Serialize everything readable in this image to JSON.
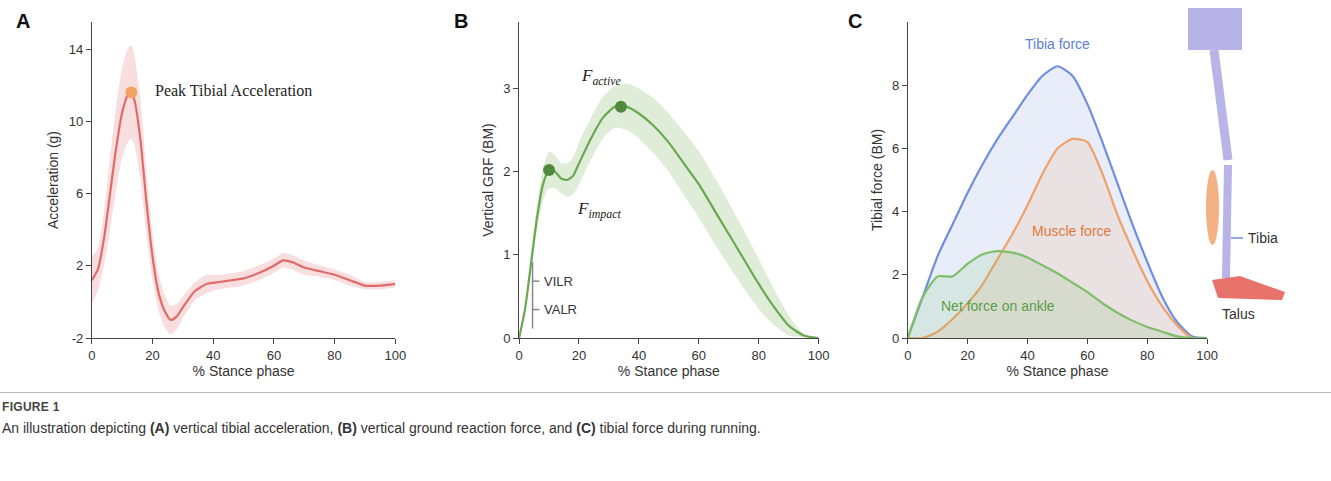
{
  "chart_data": [
    {
      "panel": "A",
      "type": "line",
      "x_label": "% Stance phase",
      "y_label": "Acceleration (g)",
      "xlim": [
        0,
        100
      ],
      "xticks": [
        0,
        20,
        40,
        60,
        80,
        100
      ],
      "ylim": [
        -2,
        15.5
      ],
      "yticks": [
        -2,
        2,
        6,
        10,
        14
      ],
      "x": [
        0,
        2,
        4,
        6,
        8,
        10,
        12,
        13,
        14,
        16,
        18,
        20,
        22,
        24,
        26,
        28,
        30,
        34,
        38,
        42,
        46,
        50,
        55,
        60,
        63,
        66,
        70,
        75,
        80,
        85,
        90,
        95,
        100
      ],
      "series": [
        {
          "color": "#e06b6b",
          "values": [
            1.2,
            1.8,
            3.5,
            6,
            8.5,
            10.5,
            11.5,
            11.6,
            11.2,
            9,
            5.5,
            2.5,
            0.5,
            -0.5,
            -1.0,
            -0.8,
            -0.3,
            0.6,
            1.0,
            1.1,
            1.2,
            1.3,
            1.6,
            2.0,
            2.3,
            2.2,
            1.9,
            1.7,
            1.5,
            1.2,
            0.9,
            0.9,
            1.0
          ],
          "lower": [
            -0.1,
            0.6,
            2.0,
            4.0,
            6.2,
            8.0,
            8.9,
            9.0,
            8.7,
            6.8,
            3.7,
            1.2,
            -0.5,
            -1.4,
            -1.8,
            -1.5,
            -0.9,
            0.1,
            0.5,
            0.7,
            0.8,
            0.9,
            1.2,
            1.6,
            1.9,
            1.8,
            1.5,
            1.4,
            1.2,
            0.9,
            0.7,
            0.7,
            0.8
          ],
          "upper": [
            2.5,
            3.0,
            5.0,
            8.0,
            10.8,
            13.0,
            14.1,
            14.2,
            13.7,
            11.2,
            7.3,
            3.8,
            1.5,
            0.4,
            -0.2,
            -0.1,
            0.3,
            1.1,
            1.5,
            1.5,
            1.6,
            1.7,
            2.0,
            2.4,
            2.7,
            2.6,
            2.3,
            2.0,
            1.8,
            1.5,
            1.1,
            1.1,
            1.2
          ]
        }
      ],
      "points": [
        {
          "x": 13,
          "y": 11.6,
          "color": "#f4a261",
          "label": "Peak Tibial Acceleration"
        }
      ]
    },
    {
      "panel": "B",
      "type": "line",
      "x_label": "% Stance phase",
      "y_label": "Vertical GRF (BM)",
      "xlim": [
        0,
        100
      ],
      "xticks": [
        0,
        20,
        40,
        60,
        80,
        100
      ],
      "ylim": [
        0,
        3.8
      ],
      "yticks": [
        0,
        1,
        2,
        3
      ],
      "x": [
        0,
        2,
        4,
        6,
        8,
        10,
        12,
        14,
        16,
        18,
        20,
        24,
        28,
        32,
        36,
        40,
        45,
        50,
        55,
        60,
        65,
        70,
        75,
        80,
        85,
        90,
        95,
        100
      ],
      "series": [
        {
          "color": "#6aa84f",
          "values": [
            0,
            0.35,
            0.9,
            1.45,
            1.85,
            2.02,
            2.0,
            1.92,
            1.9,
            1.95,
            2.1,
            2.4,
            2.65,
            2.78,
            2.78,
            2.7,
            2.55,
            2.35,
            2.1,
            1.85,
            1.55,
            1.25,
            0.95,
            0.65,
            0.38,
            0.15,
            0.03,
            0
          ],
          "lower": [
            0,
            0.3,
            0.8,
            1.3,
            1.65,
            1.8,
            1.8,
            1.74,
            1.7,
            1.73,
            1.85,
            2.15,
            2.4,
            2.53,
            2.5,
            2.4,
            2.22,
            2.0,
            1.72,
            1.45,
            1.15,
            0.87,
            0.6,
            0.35,
            0.16,
            0.03,
            0.01,
            0
          ],
          "upper": [
            0,
            0.4,
            1.0,
            1.6,
            2.05,
            2.24,
            2.2,
            2.1,
            2.1,
            2.17,
            2.35,
            2.65,
            2.9,
            3.03,
            3.06,
            3.0,
            2.88,
            2.7,
            2.48,
            2.25,
            1.95,
            1.63,
            1.3,
            0.95,
            0.6,
            0.27,
            0.05,
            0
          ]
        }
      ],
      "points": [
        {
          "x": 10,
          "y": 2.02,
          "color": "#4f8a3c",
          "symbol": "F",
          "subscript": "impact"
        },
        {
          "x": 34,
          "y": 2.78,
          "color": "#4f8a3c",
          "symbol": "F",
          "subscript": "active"
        }
      ],
      "labels": [
        "VILR",
        "VALR"
      ]
    },
    {
      "panel": "C",
      "type": "area",
      "x_label": "% Stance phase",
      "y_label": "Tibial force (BM)",
      "xlim": [
        0,
        100
      ],
      "xticks": [
        0,
        20,
        40,
        60,
        80,
        100
      ],
      "ylim": [
        0,
        10
      ],
      "yticks": [
        0,
        2,
        4,
        6,
        8
      ],
      "x": [
        0,
        5,
        10,
        15,
        20,
        25,
        30,
        35,
        40,
        45,
        50,
        55,
        60,
        65,
        70,
        75,
        80,
        85,
        90,
        95,
        100
      ],
      "series": [
        {
          "name": "Tibia force",
          "color": "#6f8fdc",
          "values": [
            0,
            1.3,
            2.6,
            3.6,
            4.6,
            5.5,
            6.3,
            7.0,
            7.7,
            8.3,
            8.6,
            8.3,
            7.4,
            6.2,
            4.9,
            3.6,
            2.4,
            1.3,
            0.5,
            0.05,
            0
          ]
        },
        {
          "name": "Muscle force",
          "color": "#f0a06a",
          "values": [
            0,
            0,
            0.2,
            0.6,
            1.1,
            1.7,
            2.5,
            3.3,
            4.2,
            5.2,
            6.0,
            6.3,
            6.2,
            5.2,
            3.9,
            2.8,
            1.8,
            1.0,
            0.4,
            0,
            0
          ]
        },
        {
          "name": "Net force on ankle",
          "color": "#7fbf6a",
          "values": [
            0,
            1.3,
            1.95,
            1.95,
            2.35,
            2.65,
            2.75,
            2.7,
            2.55,
            2.3,
            2.05,
            1.75,
            1.45,
            1.1,
            0.8,
            0.55,
            0.35,
            0.2,
            0.05,
            0,
            0
          ]
        }
      ],
      "labels": [
        "Tibia",
        "Talus"
      ]
    }
  ],
  "figure": {
    "label": "FIGURE 1",
    "caption": "An illustration depicting (A) vertical tibial acceleration, (B) vertical ground reaction force, and (C) tibial force during running."
  }
}
